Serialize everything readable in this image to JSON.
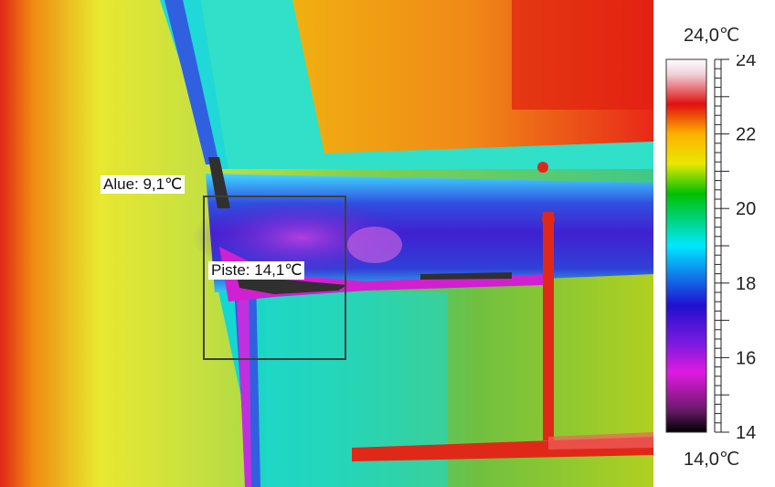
{
  "measurements": {
    "area_label": "Alue: 9,1℃",
    "spot_label": "Piste: 14,1℃"
  },
  "scale": {
    "max_label": "24,0℃",
    "min_label": "14,0℃",
    "ticks": [
      "14",
      "16",
      "18",
      "20",
      "22",
      "24"
    ]
  },
  "colors": {
    "palette_stops": [
      "#000000",
      "#6a1a6a",
      "#e01ae0",
      "#7a1ae0",
      "#2010d0",
      "#00e8ff",
      "#00c000",
      "#e8e800",
      "#ffb000",
      "#e01010",
      "#f0d0d8",
      "#ffffff"
    ]
  }
}
